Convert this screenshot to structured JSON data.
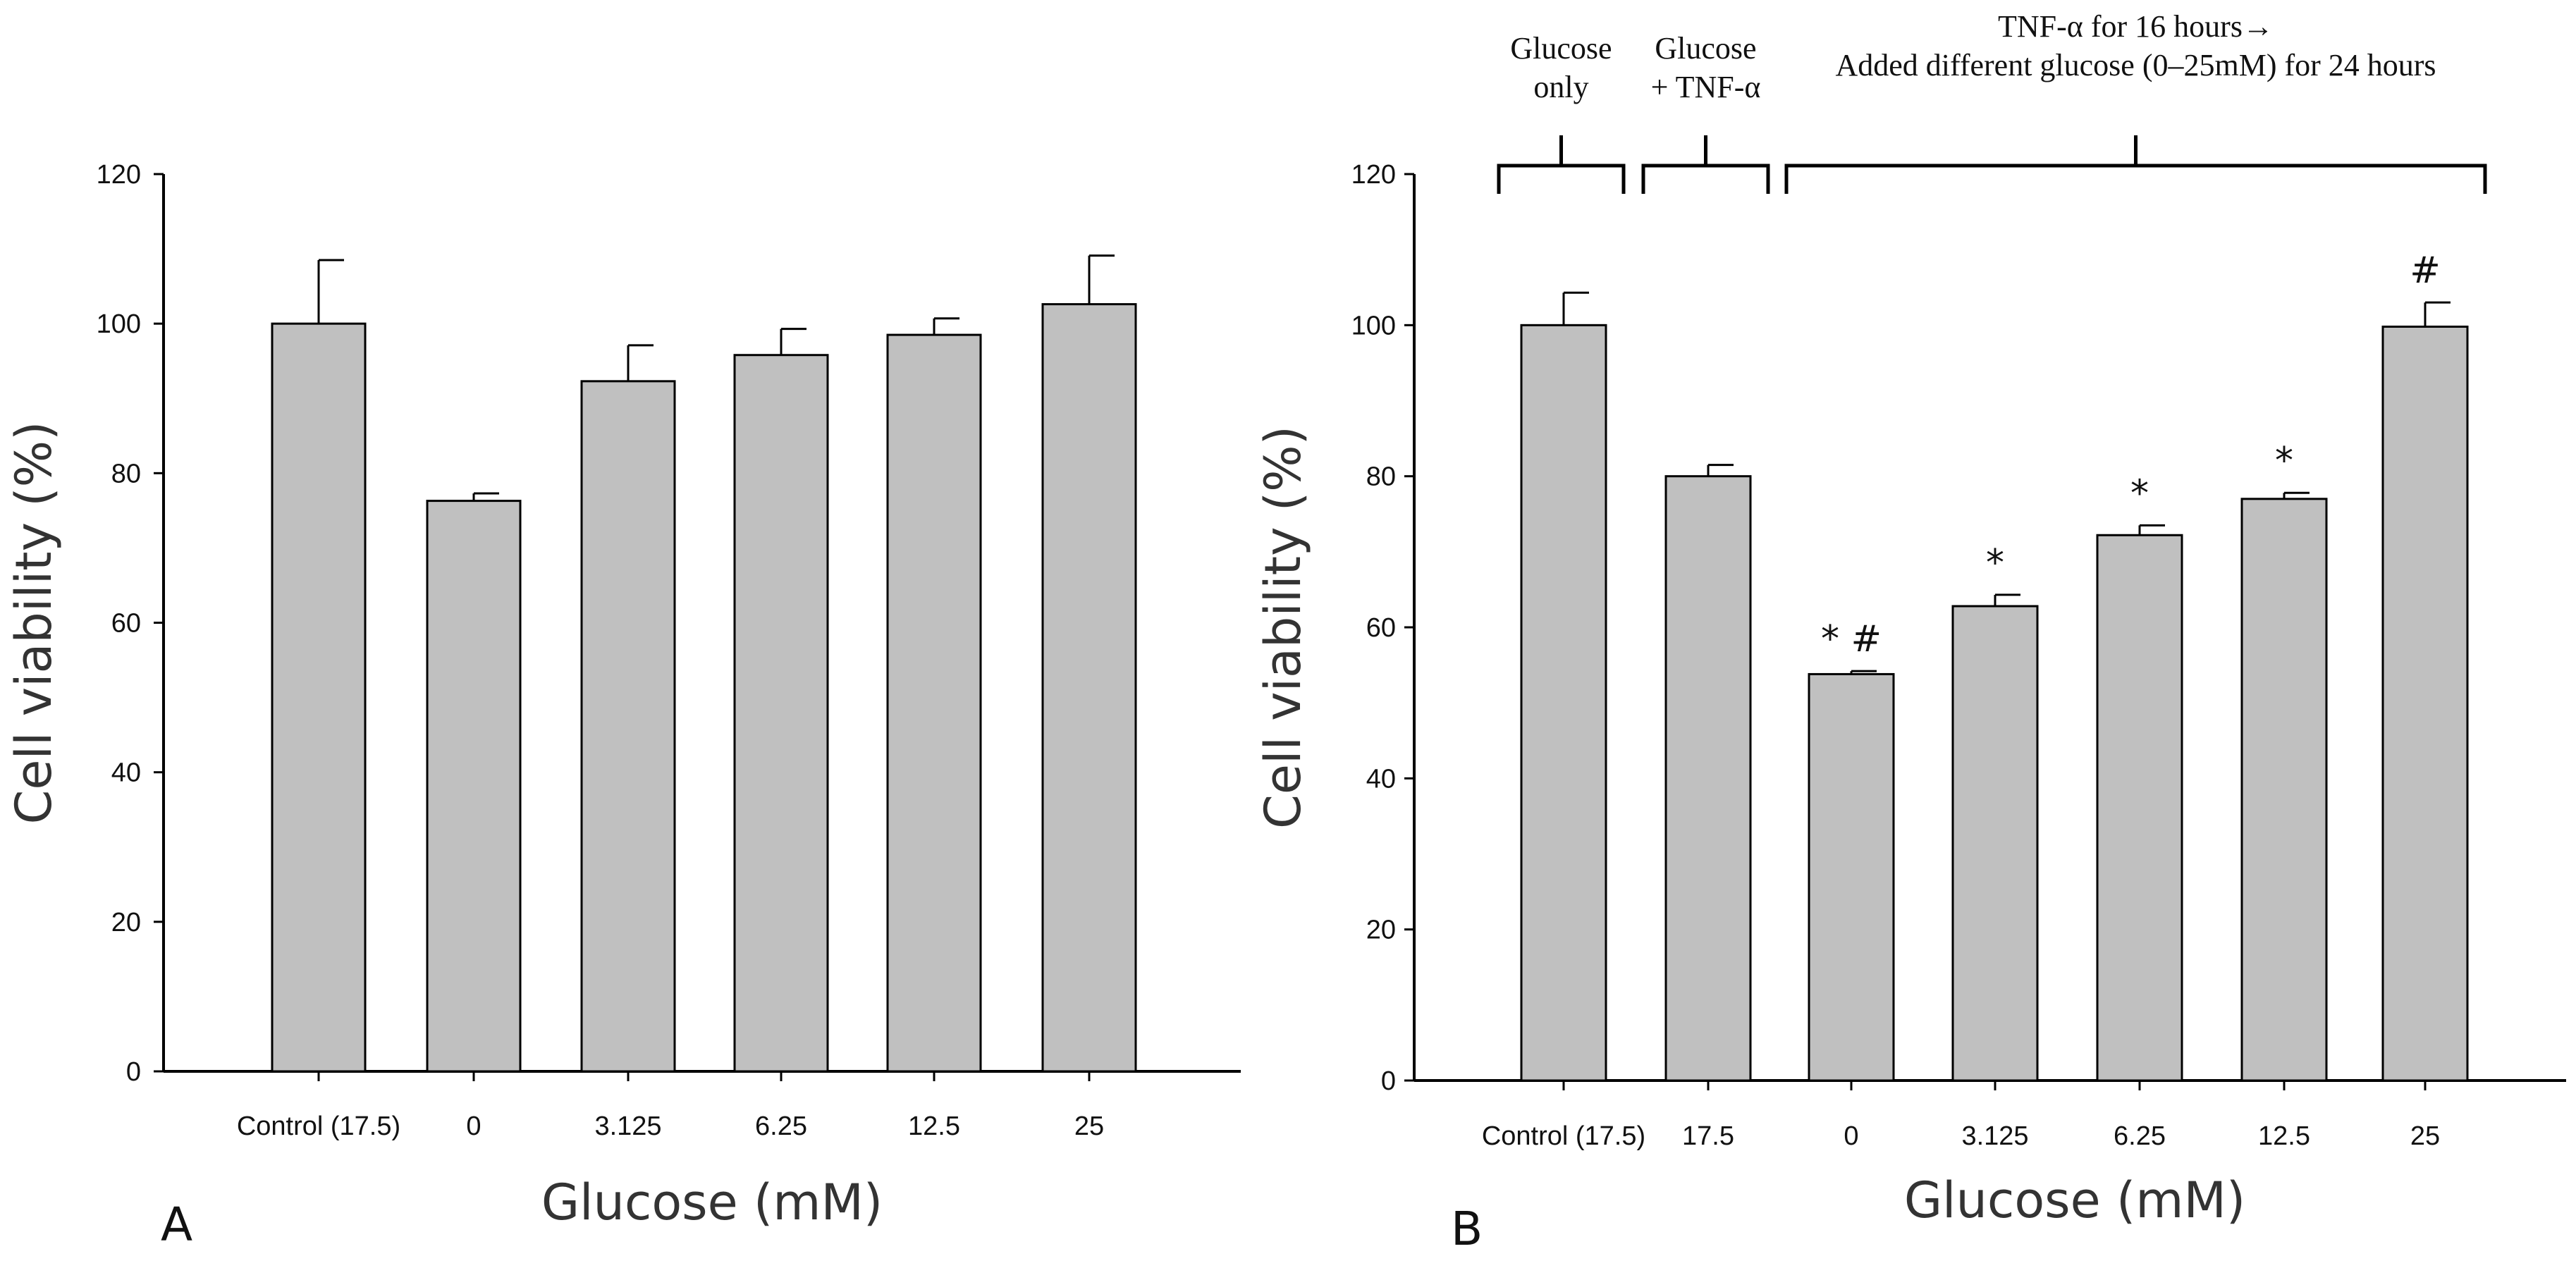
{
  "chart_data": [
    {
      "type": "bar",
      "panel_label": "A",
      "categories": [
        "Control (17.5)",
        "0",
        "3.125",
        "6.25",
        "12.5",
        "25"
      ],
      "values": [
        100,
        76.3,
        92.3,
        95.8,
        98.5,
        102.6
      ],
      "errors": [
        8.5,
        1.0,
        4.8,
        3.5,
        2.2,
        6.5
      ],
      "xlabel": "Glucose (mM)",
      "ylabel": "Cell viability (%)",
      "ylim": [
        0,
        120
      ],
      "yticks": [
        "0",
        "20",
        "40",
        "60",
        "80",
        "100",
        "120"
      ],
      "grid": false,
      "significance": [
        "",
        "",
        "",
        "",
        "",
        ""
      ]
    },
    {
      "type": "bar",
      "panel_label": "B",
      "categories": [
        "Control (17.5)",
        "17.5",
        "0",
        "3.125",
        "6.25",
        "12.5",
        "25"
      ],
      "values": [
        100,
        80,
        53.8,
        62.8,
        72.2,
        77.0,
        99.8
      ],
      "errors": [
        4.3,
        1.5,
        0.4,
        1.5,
        1.3,
        0.8,
        3.2
      ],
      "xlabel": "Glucose (mM)",
      "ylabel": "Cell viability (%)",
      "ylim": [
        0,
        120
      ],
      "yticks": [
        "0",
        "20",
        "40",
        "60",
        "80",
        "100",
        "120"
      ],
      "grid": false,
      "significance": [
        "",
        "",
        "* #",
        "*",
        "*",
        "*",
        "#"
      ],
      "groups": [
        {
          "lines": [
            "Glucose",
            "only"
          ],
          "from": 0,
          "to": 0
        },
        {
          "lines": [
            "Glucose",
            "+ TNF-α"
          ],
          "from": 1,
          "to": 1
        },
        {
          "lines": [
            "TNF-α  for 16 hours→",
            "Added different glucose (0–25mM) for 24 hours"
          ],
          "from": 2,
          "to": 6
        }
      ]
    }
  ]
}
